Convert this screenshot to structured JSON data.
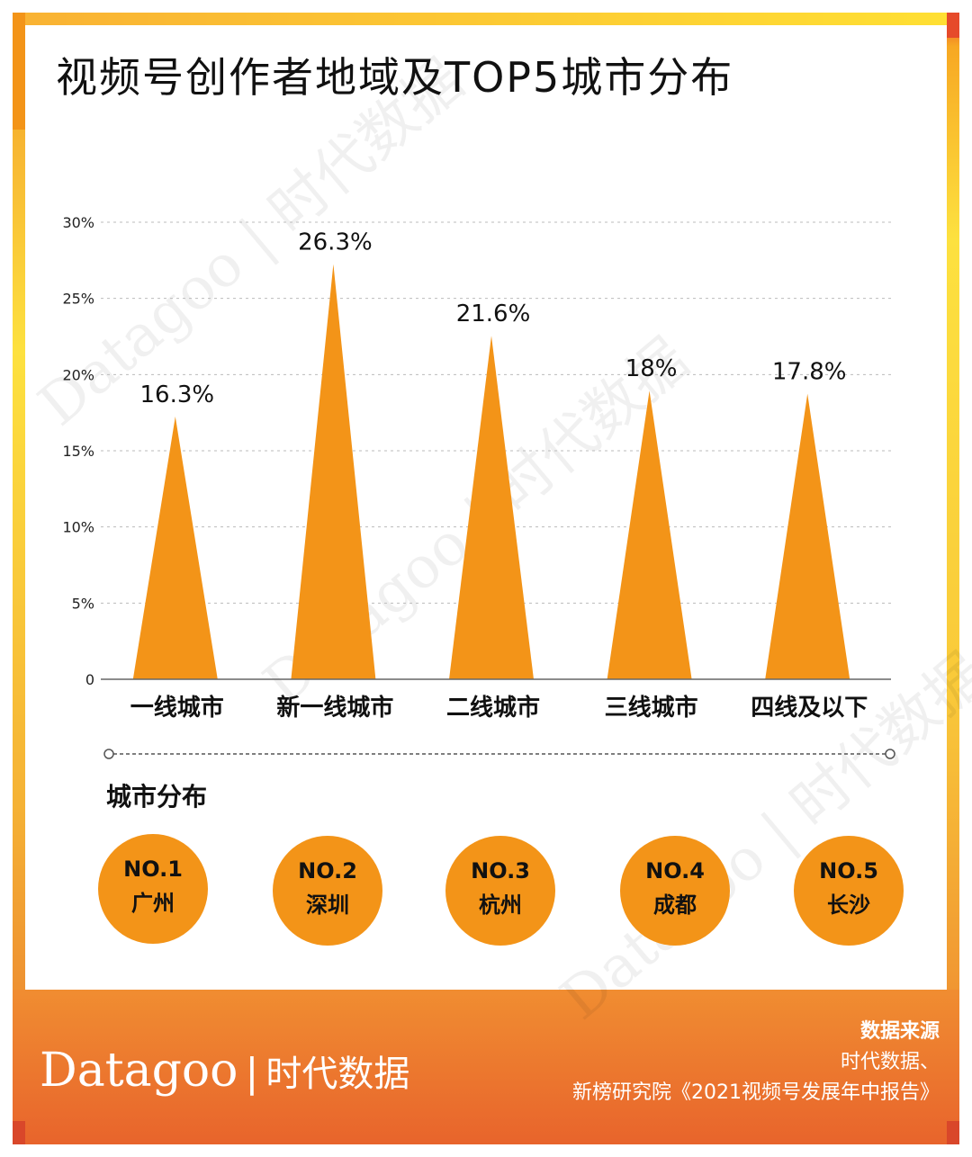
{
  "title": "视频号创作者地域及TOP5城市分布",
  "watermark": "Datagoo | 时代数据",
  "colors": {
    "bar": "#f39418",
    "accent_red": "#e64a2a",
    "yellow": "#fde13f"
  },
  "chart_data": {
    "type": "bar",
    "categories": [
      "一线城市",
      "新一线城市",
      "二线城市",
      "三线城市",
      "四线及以下"
    ],
    "values": [
      16.3,
      26.3,
      21.6,
      18,
      17.8
    ],
    "data_labels": [
      "16.3%",
      "26.3%",
      "21.6%",
      "18%",
      "17.8%"
    ],
    "yticks": [
      "0",
      "5%",
      "10%",
      "15%",
      "20%",
      "25%",
      "30%"
    ],
    "ylim": [
      0,
      30
    ],
    "grid": true,
    "xlabel": "",
    "ylabel": ""
  },
  "city_section": {
    "title": "城市分布",
    "items": [
      {
        "rank": "NO.1",
        "city": "广州"
      },
      {
        "rank": "NO.2",
        "city": "深圳"
      },
      {
        "rank": "NO.3",
        "city": "杭州"
      },
      {
        "rank": "NO.4",
        "city": "成都"
      },
      {
        "rank": "NO.5",
        "city": "长沙"
      }
    ]
  },
  "footer": {
    "brand_latin": "Datagoo",
    "brand_sep": "|",
    "brand_cn": "时代数据",
    "source_title": "数据来源",
    "source_line1": "时代数据、",
    "source_line2": "新榜研究院《2021视频号发展年中报告》"
  }
}
